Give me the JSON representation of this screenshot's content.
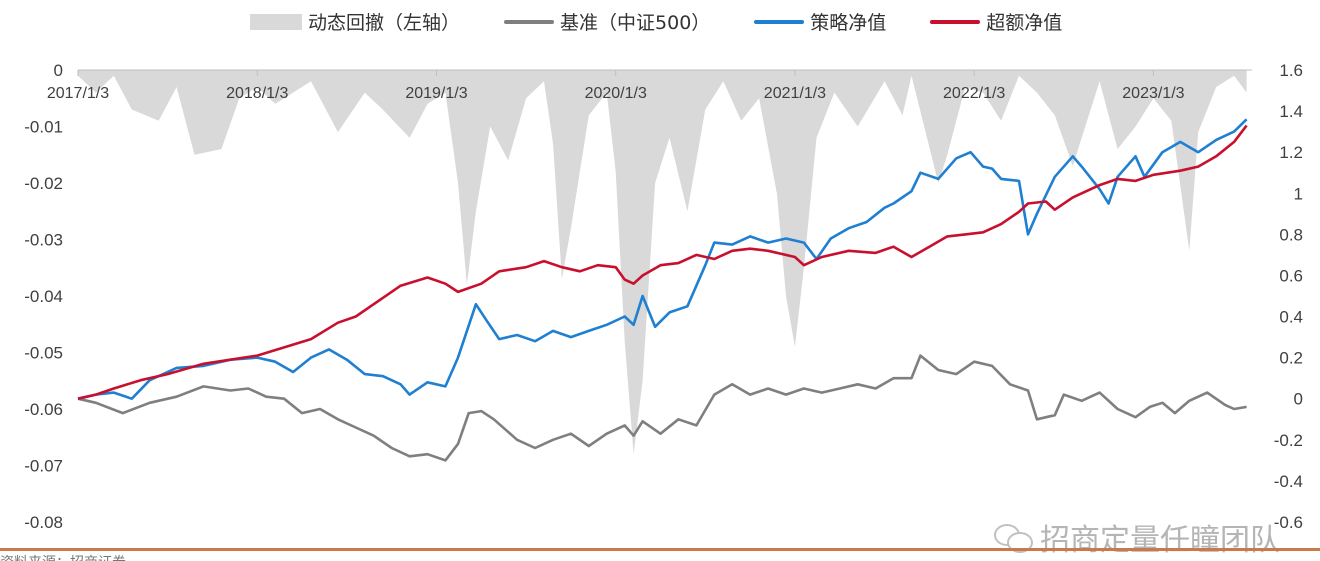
{
  "legend": {
    "drawdown": "动态回撤（左轴）",
    "benchmark": "基准（中证500）",
    "strategy": "策略净值",
    "excess": "超额净值"
  },
  "watermark": "招商定量任瞳团队",
  "source": "资料来源：招商证券",
  "colors": {
    "drawdown": "#d9d9d9",
    "benchmark": "#7f7f7f",
    "strategy": "#1f7fd1",
    "excess": "#c8102e",
    "bottom_rule": "#c87a4b"
  },
  "chart_data": {
    "type": "line",
    "x_labels": [
      "2017/1/3",
      "2018/1/3",
      "2019/1/3",
      "2020/1/3",
      "2021/1/3",
      "2022/1/3",
      "2023/1/3"
    ],
    "x_label_dates": [
      2017.0,
      2018.0,
      2019.0,
      2020.0,
      2021.0,
      2022.0,
      2023.0
    ],
    "x_range": [
      2017.0,
      2023.55
    ],
    "left_axis": {
      "range": [
        -0.08,
        0
      ],
      "ticks": [
        "0",
        "-0.01",
        "-0.02",
        "-0.03",
        "-0.04",
        "-0.05",
        "-0.06",
        "-0.07",
        "-0.08"
      ],
      "tick_values": [
        0,
        -0.01,
        -0.02,
        -0.03,
        -0.04,
        -0.05,
        -0.06,
        -0.07,
        -0.08
      ]
    },
    "right_axis": {
      "range": [
        -0.6,
        1.6
      ],
      "ticks": [
        "1.6",
        "1.4",
        "1.2",
        "1",
        "0.8",
        "0.6",
        "0.4",
        "0.2",
        "0",
        "-0.2",
        "-0.4",
        "-0.6"
      ],
      "tick_values": [
        1.6,
        1.4,
        1.2,
        1.0,
        0.8,
        0.6,
        0.4,
        0.2,
        0,
        -0.2,
        -0.4,
        -0.6
      ]
    },
    "series": [
      {
        "name": "动态回撤（左轴）",
        "axis": "left",
        "kind": "area",
        "points": [
          [
            2017.0,
            -0.001
          ],
          [
            2017.1,
            -0.004
          ],
          [
            2017.2,
            -0.001
          ],
          [
            2017.3,
            -0.007
          ],
          [
            2017.45,
            -0.009
          ],
          [
            2017.55,
            -0.003
          ],
          [
            2017.65,
            -0.015
          ],
          [
            2017.8,
            -0.014
          ],
          [
            2017.9,
            -0.005
          ],
          [
            2018.0,
            -0.003
          ],
          [
            2018.1,
            -0.006
          ],
          [
            2018.2,
            -0.004
          ],
          [
            2018.3,
            -0.002
          ],
          [
            2018.45,
            -0.011
          ],
          [
            2018.6,
            -0.004
          ],
          [
            2018.7,
            -0.007
          ],
          [
            2018.85,
            -0.012
          ],
          [
            2018.95,
            -0.006
          ],
          [
            2019.05,
            -0.004
          ],
          [
            2019.12,
            -0.02
          ],
          [
            2019.17,
            -0.038
          ],
          [
            2019.22,
            -0.025
          ],
          [
            2019.3,
            -0.01
          ],
          [
            2019.4,
            -0.016
          ],
          [
            2019.5,
            -0.005
          ],
          [
            2019.6,
            -0.002
          ],
          [
            2019.65,
            -0.013
          ],
          [
            2019.7,
            -0.037
          ],
          [
            2019.75,
            -0.028
          ],
          [
            2019.85,
            -0.008
          ],
          [
            2019.95,
            -0.004
          ],
          [
            2020.0,
            -0.018
          ],
          [
            2020.05,
            -0.048
          ],
          [
            2020.1,
            -0.068
          ],
          [
            2020.15,
            -0.055
          ],
          [
            2020.22,
            -0.02
          ],
          [
            2020.3,
            -0.012
          ],
          [
            2020.4,
            -0.025
          ],
          [
            2020.5,
            -0.007
          ],
          [
            2020.6,
            -0.002
          ],
          [
            2020.7,
            -0.009
          ],
          [
            2020.8,
            -0.005
          ],
          [
            2020.9,
            -0.022
          ],
          [
            2020.95,
            -0.04
          ],
          [
            2021.0,
            -0.049
          ],
          [
            2021.05,
            -0.035
          ],
          [
            2021.12,
            -0.012
          ],
          [
            2021.22,
            -0.004
          ],
          [
            2021.35,
            -0.01
          ],
          [
            2021.5,
            -0.002
          ],
          [
            2021.6,
            -0.008
          ],
          [
            2021.65,
            -0.001
          ],
          [
            2021.8,
            -0.02
          ],
          [
            2021.85,
            -0.015
          ],
          [
            2021.95,
            -0.003
          ],
          [
            2022.05,
            -0.004
          ],
          [
            2022.15,
            -0.009
          ],
          [
            2022.25,
            -0.001
          ],
          [
            2022.35,
            -0.004
          ],
          [
            2022.45,
            -0.008
          ],
          [
            2022.55,
            -0.017
          ],
          [
            2022.6,
            -0.012
          ],
          [
            2022.7,
            -0.002
          ],
          [
            2022.8,
            -0.014
          ],
          [
            2022.9,
            -0.01
          ],
          [
            2023.0,
            -0.005
          ],
          [
            2023.1,
            -0.009
          ],
          [
            2023.2,
            -0.032
          ],
          [
            2023.25,
            -0.011
          ],
          [
            2023.35,
            -0.003
          ],
          [
            2023.45,
            -0.001
          ],
          [
            2023.52,
            -0.004
          ]
        ]
      },
      {
        "name": "基准（中证500）",
        "axis": "right",
        "kind": "line",
        "points": [
          [
            2017.0,
            0.0
          ],
          [
            2017.1,
            -0.02
          ],
          [
            2017.25,
            -0.07
          ],
          [
            2017.4,
            -0.02
          ],
          [
            2017.55,
            0.01
          ],
          [
            2017.7,
            0.06
          ],
          [
            2017.85,
            0.04
          ],
          [
            2017.95,
            0.05
          ],
          [
            2018.05,
            0.01
          ],
          [
            2018.15,
            0.0
          ],
          [
            2018.25,
            -0.07
          ],
          [
            2018.35,
            -0.05
          ],
          [
            2018.45,
            -0.1
          ],
          [
            2018.55,
            -0.14
          ],
          [
            2018.65,
            -0.18
          ],
          [
            2018.75,
            -0.24
          ],
          [
            2018.85,
            -0.28
          ],
          [
            2018.95,
            -0.27
          ],
          [
            2019.05,
            -0.3
          ],
          [
            2019.12,
            -0.22
          ],
          [
            2019.18,
            -0.07
          ],
          [
            2019.25,
            -0.06
          ],
          [
            2019.32,
            -0.1
          ],
          [
            2019.45,
            -0.2
          ],
          [
            2019.55,
            -0.24
          ],
          [
            2019.65,
            -0.2
          ],
          [
            2019.75,
            -0.17
          ],
          [
            2019.85,
            -0.23
          ],
          [
            2019.95,
            -0.17
          ],
          [
            2020.05,
            -0.13
          ],
          [
            2020.1,
            -0.18
          ],
          [
            2020.15,
            -0.11
          ],
          [
            2020.25,
            -0.17
          ],
          [
            2020.35,
            -0.1
          ],
          [
            2020.45,
            -0.13
          ],
          [
            2020.55,
            0.02
          ],
          [
            2020.65,
            0.07
          ],
          [
            2020.75,
            0.02
          ],
          [
            2020.85,
            0.05
          ],
          [
            2020.95,
            0.02
          ],
          [
            2021.05,
            0.05
          ],
          [
            2021.15,
            0.03
          ],
          [
            2021.25,
            0.05
          ],
          [
            2021.35,
            0.07
          ],
          [
            2021.45,
            0.05
          ],
          [
            2021.55,
            0.1
          ],
          [
            2021.65,
            0.1
          ],
          [
            2021.7,
            0.21
          ],
          [
            2021.8,
            0.14
          ],
          [
            2021.9,
            0.12
          ],
          [
            2022.0,
            0.18
          ],
          [
            2022.1,
            0.16
          ],
          [
            2022.2,
            0.07
          ],
          [
            2022.3,
            0.04
          ],
          [
            2022.35,
            -0.1
          ],
          [
            2022.45,
            -0.08
          ],
          [
            2022.5,
            0.02
          ],
          [
            2022.6,
            -0.01
          ],
          [
            2022.7,
            0.03
          ],
          [
            2022.8,
            -0.05
          ],
          [
            2022.9,
            -0.09
          ],
          [
            2022.98,
            -0.04
          ],
          [
            2023.05,
            -0.02
          ],
          [
            2023.12,
            -0.07
          ],
          [
            2023.2,
            -0.01
          ],
          [
            2023.3,
            0.03
          ],
          [
            2023.4,
            -0.03
          ],
          [
            2023.45,
            -0.05
          ],
          [
            2023.52,
            -0.04
          ]
        ]
      },
      {
        "name": "策略净值",
        "axis": "right",
        "kind": "line",
        "points": [
          [
            2017.0,
            0.0
          ],
          [
            2017.1,
            0.02
          ],
          [
            2017.2,
            0.03
          ],
          [
            2017.3,
            0.0
          ],
          [
            2017.4,
            0.09
          ],
          [
            2017.55,
            0.15
          ],
          [
            2017.7,
            0.16
          ],
          [
            2017.85,
            0.19
          ],
          [
            2018.0,
            0.2
          ],
          [
            2018.1,
            0.18
          ],
          [
            2018.2,
            0.13
          ],
          [
            2018.3,
            0.2
          ],
          [
            2018.4,
            0.24
          ],
          [
            2018.5,
            0.19
          ],
          [
            2018.6,
            0.12
          ],
          [
            2018.7,
            0.11
          ],
          [
            2018.8,
            0.07
          ],
          [
            2018.85,
            0.02
          ],
          [
            2018.95,
            0.08
          ],
          [
            2019.05,
            0.06
          ],
          [
            2019.12,
            0.2
          ],
          [
            2019.22,
            0.46
          ],
          [
            2019.28,
            0.38
          ],
          [
            2019.35,
            0.29
          ],
          [
            2019.45,
            0.31
          ],
          [
            2019.55,
            0.28
          ],
          [
            2019.65,
            0.33
          ],
          [
            2019.75,
            0.3
          ],
          [
            2019.85,
            0.33
          ],
          [
            2019.95,
            0.36
          ],
          [
            2020.05,
            0.4
          ],
          [
            2020.1,
            0.36
          ],
          [
            2020.15,
            0.5
          ],
          [
            2020.22,
            0.35
          ],
          [
            2020.3,
            0.42
          ],
          [
            2020.4,
            0.45
          ],
          [
            2020.5,
            0.65
          ],
          [
            2020.55,
            0.76
          ],
          [
            2020.65,
            0.75
          ],
          [
            2020.75,
            0.79
          ],
          [
            2020.85,
            0.76
          ],
          [
            2020.95,
            0.78
          ],
          [
            2021.05,
            0.76
          ],
          [
            2021.12,
            0.68
          ],
          [
            2021.2,
            0.78
          ],
          [
            2021.3,
            0.83
          ],
          [
            2021.4,
            0.86
          ],
          [
            2021.5,
            0.93
          ],
          [
            2021.55,
            0.95
          ],
          [
            2021.65,
            1.01
          ],
          [
            2021.7,
            1.1
          ],
          [
            2021.8,
            1.07
          ],
          [
            2021.9,
            1.17
          ],
          [
            2021.98,
            1.2
          ],
          [
            2022.05,
            1.13
          ],
          [
            2022.1,
            1.12
          ],
          [
            2022.15,
            1.07
          ],
          [
            2022.25,
            1.06
          ],
          [
            2022.3,
            0.8
          ],
          [
            2022.35,
            0.9
          ],
          [
            2022.45,
            1.08
          ],
          [
            2022.55,
            1.18
          ],
          [
            2022.6,
            1.13
          ],
          [
            2022.7,
            1.02
          ],
          [
            2022.75,
            0.95
          ],
          [
            2022.8,
            1.08
          ],
          [
            2022.9,
            1.18
          ],
          [
            2022.95,
            1.08
          ],
          [
            2023.05,
            1.2
          ],
          [
            2023.15,
            1.25
          ],
          [
            2023.25,
            1.2
          ],
          [
            2023.35,
            1.26
          ],
          [
            2023.45,
            1.3
          ],
          [
            2023.52,
            1.36
          ]
        ]
      },
      {
        "name": "超额净值",
        "axis": "right",
        "kind": "line",
        "points": [
          [
            2017.0,
            0.0
          ],
          [
            2017.1,
            0.02
          ],
          [
            2017.2,
            0.05
          ],
          [
            2017.35,
            0.09
          ],
          [
            2017.5,
            0.12
          ],
          [
            2017.7,
            0.17
          ],
          [
            2017.85,
            0.19
          ],
          [
            2018.0,
            0.21
          ],
          [
            2018.15,
            0.25
          ],
          [
            2018.3,
            0.29
          ],
          [
            2018.45,
            0.37
          ],
          [
            2018.55,
            0.4
          ],
          [
            2018.65,
            0.46
          ],
          [
            2018.8,
            0.55
          ],
          [
            2018.95,
            0.59
          ],
          [
            2019.05,
            0.56
          ],
          [
            2019.12,
            0.52
          ],
          [
            2019.25,
            0.56
          ],
          [
            2019.35,
            0.62
          ],
          [
            2019.5,
            0.64
          ],
          [
            2019.6,
            0.67
          ],
          [
            2019.7,
            0.64
          ],
          [
            2019.8,
            0.62
          ],
          [
            2019.9,
            0.65
          ],
          [
            2020.0,
            0.64
          ],
          [
            2020.05,
            0.58
          ],
          [
            2020.1,
            0.56
          ],
          [
            2020.15,
            0.6
          ],
          [
            2020.25,
            0.65
          ],
          [
            2020.35,
            0.66
          ],
          [
            2020.45,
            0.7
          ],
          [
            2020.55,
            0.68
          ],
          [
            2020.65,
            0.72
          ],
          [
            2020.75,
            0.73
          ],
          [
            2020.85,
            0.72
          ],
          [
            2021.0,
            0.69
          ],
          [
            2021.05,
            0.65
          ],
          [
            2021.15,
            0.69
          ],
          [
            2021.3,
            0.72
          ],
          [
            2021.45,
            0.71
          ],
          [
            2021.55,
            0.74
          ],
          [
            2021.65,
            0.69
          ],
          [
            2021.75,
            0.74
          ],
          [
            2021.85,
            0.79
          ],
          [
            2021.95,
            0.8
          ],
          [
            2022.05,
            0.81
          ],
          [
            2022.15,
            0.85
          ],
          [
            2022.25,
            0.91
          ],
          [
            2022.3,
            0.95
          ],
          [
            2022.4,
            0.96
          ],
          [
            2022.45,
            0.92
          ],
          [
            2022.55,
            0.98
          ],
          [
            2022.7,
            1.04
          ],
          [
            2022.8,
            1.07
          ],
          [
            2022.9,
            1.06
          ],
          [
            2023.0,
            1.09
          ],
          [
            2023.15,
            1.11
          ],
          [
            2023.25,
            1.13
          ],
          [
            2023.35,
            1.18
          ],
          [
            2023.45,
            1.25
          ],
          [
            2023.52,
            1.33
          ]
        ]
      }
    ]
  }
}
